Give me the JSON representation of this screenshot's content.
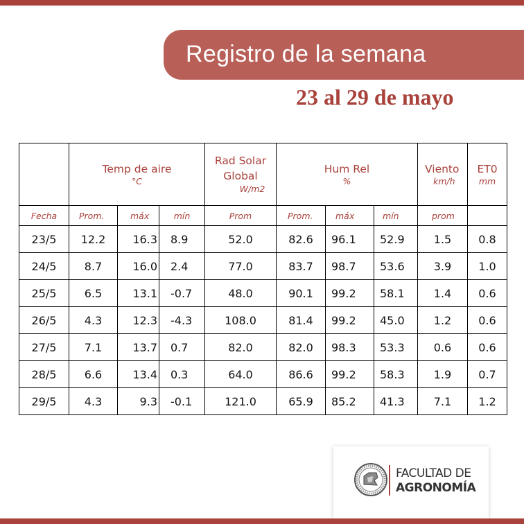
{
  "header": {
    "title": "Registro de la semana",
    "subtitle": "23 al 29 de mayo"
  },
  "table": {
    "groups": {
      "temp": {
        "label": "Temp de aire",
        "unit": "°C"
      },
      "rad": {
        "label_line1": "Rad Solar",
        "label_line2": "Global",
        "unit": "W/m2"
      },
      "hum": {
        "label": "Hum Rel",
        "unit": "%"
      },
      "viento": {
        "label": "Viento",
        "unit": "km/h"
      },
      "et0": {
        "label": "ET0",
        "unit": "mm"
      }
    },
    "subheaders": [
      "Fecha",
      "Prom.",
      "máx",
      "mín",
      "Prom",
      "Prom.",
      "máx",
      "mín",
      "prom",
      ""
    ],
    "rows": [
      [
        "23/5",
        "12.2",
        "16.3",
        "8.9",
        "52.0",
        "82.6",
        "96.1",
        "52.9",
        "1.5",
        "0.8"
      ],
      [
        "24/5",
        "8.7",
        "16.0",
        "2.4",
        "77.0",
        "83.7",
        "98.7",
        "53.6",
        "3.9",
        "1.0"
      ],
      [
        "25/5",
        "6.5",
        "13.1",
        "-0.7",
        "48.0",
        "90.1",
        "99.2",
        "58.1",
        "1.4",
        "0.6"
      ],
      [
        "26/5",
        "4.3",
        "12.3",
        "-4.3",
        "108.0",
        "81.4",
        "99.2",
        "45.0",
        "1.2",
        "0.6"
      ],
      [
        "27/5",
        "7.1",
        "13.7",
        "0.7",
        "82.0",
        "82.0",
        "98.3",
        "53.3",
        "0.6",
        "0.6"
      ],
      [
        "28/5",
        "6.6",
        "13.4",
        "0.3",
        "64.0",
        "86.6",
        "99.2",
        "58.3",
        "1.9",
        "0.7"
      ],
      [
        "29/5",
        "4.3",
        "9.3",
        "-0.1",
        "121.0",
        "65.9",
        "85.2",
        "41.3",
        "7.1",
        "1.2"
      ]
    ]
  },
  "logo": {
    "line1": "FACULTAD DE",
    "line2": "AGRONOMÍA",
    "seal_icon": "university-seal-icon"
  },
  "colors": {
    "accent": "#a9423b",
    "pill": "#b85f58"
  }
}
